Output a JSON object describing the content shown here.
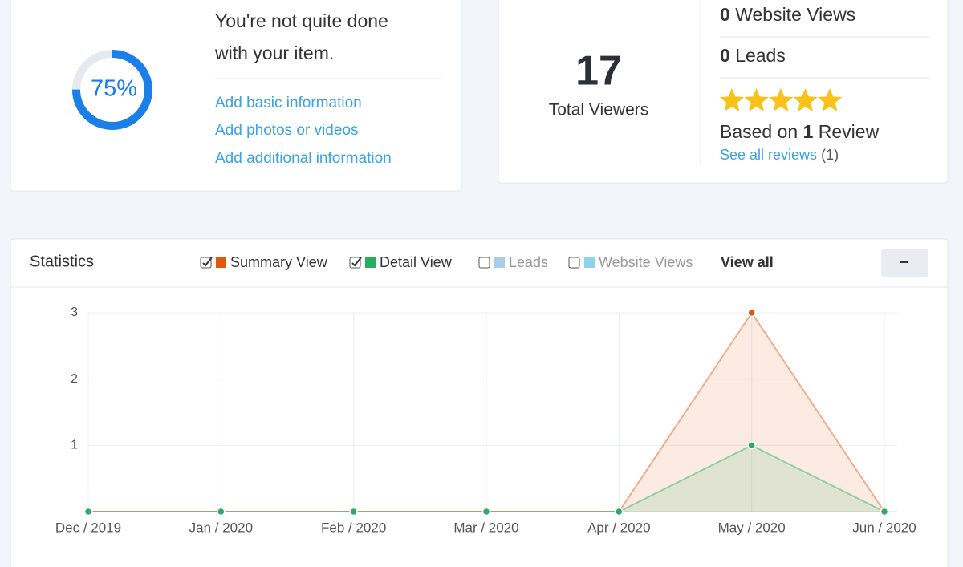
{
  "progress_card": {
    "progress": {
      "value": 75,
      "label": "75%"
    },
    "heading_lines": [
      "You're not quite done",
      "with your item."
    ],
    "links": [
      "Add basic information",
      "Add photos or videos",
      "Add additional information"
    ]
  },
  "viewers_card": {
    "total": 17,
    "total_label": "Total Viewers",
    "website_views": {
      "count": 0,
      "label": "Website Views"
    },
    "leads": {
      "count": 0,
      "label": "Leads"
    },
    "rating": 5,
    "review_prefix": "Based on",
    "review_count": 1,
    "review_suffix": "Review",
    "see_all": "See all reviews",
    "see_all_count": "(1)"
  },
  "chart_data": {
    "type": "line",
    "title": "Statistics",
    "categories": [
      "Dec / 2019",
      "Jan / 2020",
      "Feb / 2020",
      "Mar / 2020",
      "Apr / 2020",
      "May / 2020",
      "Jun / 2020"
    ],
    "series": [
      {
        "name": "Summary View",
        "color": "#e0570f",
        "values": [
          0,
          0,
          0,
          0,
          0,
          3,
          0
        ]
      },
      {
        "name": "Detail View",
        "color": "#27ae60",
        "values": [
          0,
          0,
          0,
          0,
          0,
          1,
          0
        ]
      }
    ],
    "hidden_series": [
      {
        "name": "Leads",
        "color": "#a8cde8"
      },
      {
        "name": "Website Views",
        "color": "#8fd3ea"
      }
    ],
    "view_all": "View all",
    "collapse_button": "−",
    "ylim": [
      0,
      3
    ],
    "yticks": [
      1,
      2,
      3
    ],
    "grid": true
  }
}
